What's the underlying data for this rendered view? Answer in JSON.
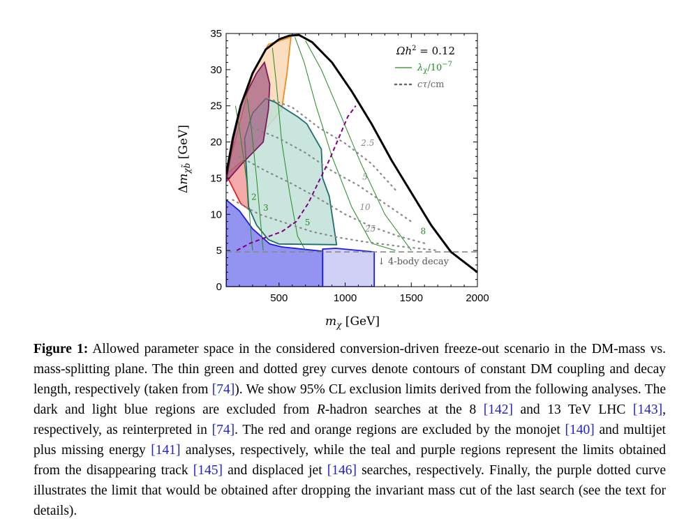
{
  "chart_data": {
    "type": "area",
    "xlabel": "m_χ [GeV]",
    "ylabel": "Δm_χb̃ [GeV]",
    "xlim": [
      100,
      2000
    ],
    "ylim": [
      0,
      35
    ],
    "x_ticks": [
      500,
      1000,
      1500,
      2000
    ],
    "y_ticks": [
      0,
      5,
      10,
      15,
      20,
      25,
      30,
      35
    ],
    "legend": {
      "placement": "top-right",
      "entries": [
        "Ωh² = 0.12",
        "λχ/10⁻⁷",
        "cτ/cm"
      ]
    },
    "annotations": [
      "↓ 4-body decay"
    ],
    "relic_boundary": {
      "name": "Ωh² = 0.12",
      "color": "#000000",
      "points": [
        [
          100,
          15.5
        ],
        [
          150,
          20.5
        ],
        [
          210,
          25
        ],
        [
          300,
          29.5
        ],
        [
          400,
          32.8
        ],
        [
          500,
          34.2
        ],
        [
          580,
          34.7
        ],
        [
          650,
          34.8
        ],
        [
          750,
          33.8
        ],
        [
          900,
          31
        ],
        [
          1050,
          27
        ],
        [
          1200,
          22.5
        ],
        [
          1350,
          17.5
        ],
        [
          1500,
          13
        ],
        [
          1650,
          8.5
        ],
        [
          1800,
          4.8
        ],
        [
          2000,
          2
        ]
      ]
    },
    "coupling_contours": {
      "color": "#228B22",
      "labels": [
        "2",
        "3",
        "5",
        "8"
      ]
    },
    "decay_length_contours": {
      "color": "#888888",
      "labels": [
        "2.5",
        "5",
        "10",
        "25"
      ]
    },
    "regions": [
      {
        "name": "dark blue",
        "color": "#8080ee",
        "points": [
          [
            100,
            0
          ],
          [
            830,
            0
          ],
          [
            830,
            4.9
          ],
          [
            520,
            5.5
          ],
          [
            430,
            5.9
          ],
          [
            300,
            8
          ],
          [
            200,
            10.5
          ],
          [
            100,
            12
          ],
          [
            100,
            0
          ]
        ]
      },
      {
        "name": "light blue",
        "color": "#c8c8f4",
        "points": [
          [
            830,
            0
          ],
          [
            1220,
            0
          ],
          [
            1220,
            4.8
          ],
          [
            930,
            5.3
          ],
          [
            830,
            5.2
          ],
          [
            830,
            0
          ]
        ]
      },
      {
        "name": "red",
        "color": "#f59c9c",
        "points": [
          [
            100,
            14.5
          ],
          [
            160,
            20
          ],
          [
            240,
            20
          ],
          [
            270,
            10.7
          ],
          [
            210,
            11.5
          ],
          [
            100,
            15.5
          ]
        ]
      },
      {
        "name": "orange",
        "color": "#fad7b5",
        "points": [
          [
            100,
            15.5
          ],
          [
            180,
            21
          ],
          [
            300,
            29.5
          ],
          [
            420,
            33.5
          ],
          [
            590,
            34.5
          ],
          [
            560,
            29.5
          ],
          [
            520,
            24.5
          ],
          [
            430,
            22.5
          ],
          [
            320,
            20
          ],
          [
            230,
            17.5
          ],
          [
            100,
            15.5
          ]
        ]
      },
      {
        "name": "teal",
        "color": "#bfe0d8",
        "points": [
          [
            240,
            20.5
          ],
          [
            300,
            24
          ],
          [
            400,
            26
          ],
          [
            470,
            25.5
          ],
          [
            570,
            24.3
          ],
          [
            640,
            23.5
          ],
          [
            710,
            22.5
          ],
          [
            820,
            19
          ],
          [
            830,
            15
          ],
          [
            880,
            12.5
          ],
          [
            935,
            5.8
          ],
          [
            500,
            5.9
          ],
          [
            420,
            6.5
          ],
          [
            330,
            8.5
          ],
          [
            270,
            11
          ],
          [
            240,
            20.5
          ]
        ]
      },
      {
        "name": "purple",
        "color": "#a05880",
        "points": [
          [
            100,
            14.5
          ],
          [
            150,
            20
          ],
          [
            220,
            25.5
          ],
          [
            330,
            29.5
          ],
          [
            390,
            31
          ],
          [
            430,
            28
          ],
          [
            420,
            24.5
          ],
          [
            380,
            20
          ],
          [
            300,
            18.5
          ],
          [
            220,
            17
          ],
          [
            100,
            14.5
          ]
        ]
      }
    ],
    "dashed_limit": {
      "color": "#800080",
      "points": [
        [
          180,
          5
        ],
        [
          280,
          6
        ],
        [
          400,
          6.8
        ],
        [
          520,
          7.6
        ],
        [
          630,
          9
        ],
        [
          720,
          11.5
        ],
        [
          800,
          14.5
        ],
        [
          880,
          17.5
        ],
        [
          950,
          20.5
        ],
        [
          1020,
          23.5
        ],
        [
          1080,
          25
        ]
      ]
    },
    "threshold_line": {
      "color": "#888888",
      "y": 4.8
    }
  },
  "caption": {
    "label": "Figure 1:",
    "text_1": " Allowed parameter space in the considered conversion-driven freeze-out scenario in the DM-mass vs. mass-splitting plane. The thin green and dotted grey curves denote contours of constant DM coupling and decay length, respectively (taken from ",
    "cite_74a": "[74]",
    "text_2": "). We show 95% CL exclusion limits derived from the following analyses. The dark and light blue regions are excluded from ",
    "r_italic": "R",
    "text_3": "-hadron searches at the 8 ",
    "cite_142": "[142]",
    "text_4": " and 13 TeV LHC ",
    "cite_143": "[143]",
    "text_5": ", respectively, as reinterpreted in ",
    "cite_74b": "[74]",
    "text_6": ". The red and orange regions are excluded by the monojet ",
    "cite_140": "[140]",
    "text_7": " and multijet plus missing energy ",
    "cite_141": "[141]",
    "text_8": " analyses, respectively, while the teal and purple regions represent the limits obtained from the disappearing track ",
    "cite_145": "[145]",
    "text_9": " and displaced jet ",
    "cite_146": "[146]",
    "text_10": " searches, respectively. Finally, the purple dotted curve illustrates the limit that would be obtained after dropping the invariant mass cut of the last search (see the text for details)."
  }
}
